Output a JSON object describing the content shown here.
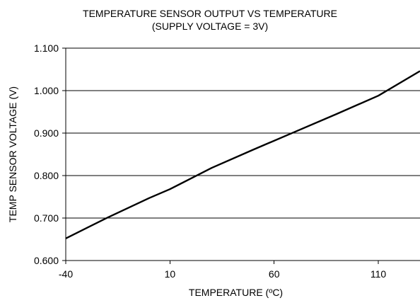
{
  "chart_data": {
    "type": "line",
    "title": "TEMPERATURE SENSOR OUTPUT VS TEMPERATURE",
    "subtitle": "(SUPPLY VOLTAGE = 3V)",
    "xlabel": "TEMPERATURE (ºC)",
    "ylabel": "TEMP SENSOR VOLTAGE (V)",
    "xlim": [
      -40,
      130
    ],
    "ylim": [
      0.6,
      1.1
    ],
    "x_ticks": [
      -40,
      10,
      60,
      110
    ],
    "x_tick_labels": [
      "-40",
      "10",
      "60",
      "110"
    ],
    "y_ticks": [
      0.6,
      0.7,
      0.8,
      0.9,
      1.0,
      1.1
    ],
    "y_tick_labels": [
      "0.600",
      "0.700",
      "0.800",
      "0.900",
      "1.000",
      "1.100"
    ],
    "grid": "horizontal",
    "legend": "none",
    "series": [
      {
        "x": [
          -40,
          -20,
          0,
          10,
          30,
          50,
          70,
          90,
          110,
          130
        ],
        "y": [
          0.652,
          0.701,
          0.747,
          0.768,
          0.818,
          0.861,
          0.903,
          0.945,
          0.988,
          1.046
        ]
      }
    ],
    "colors": {
      "line": "#000000",
      "grid": "#000000",
      "axis": "#000000",
      "background": "#ffffff"
    }
  }
}
